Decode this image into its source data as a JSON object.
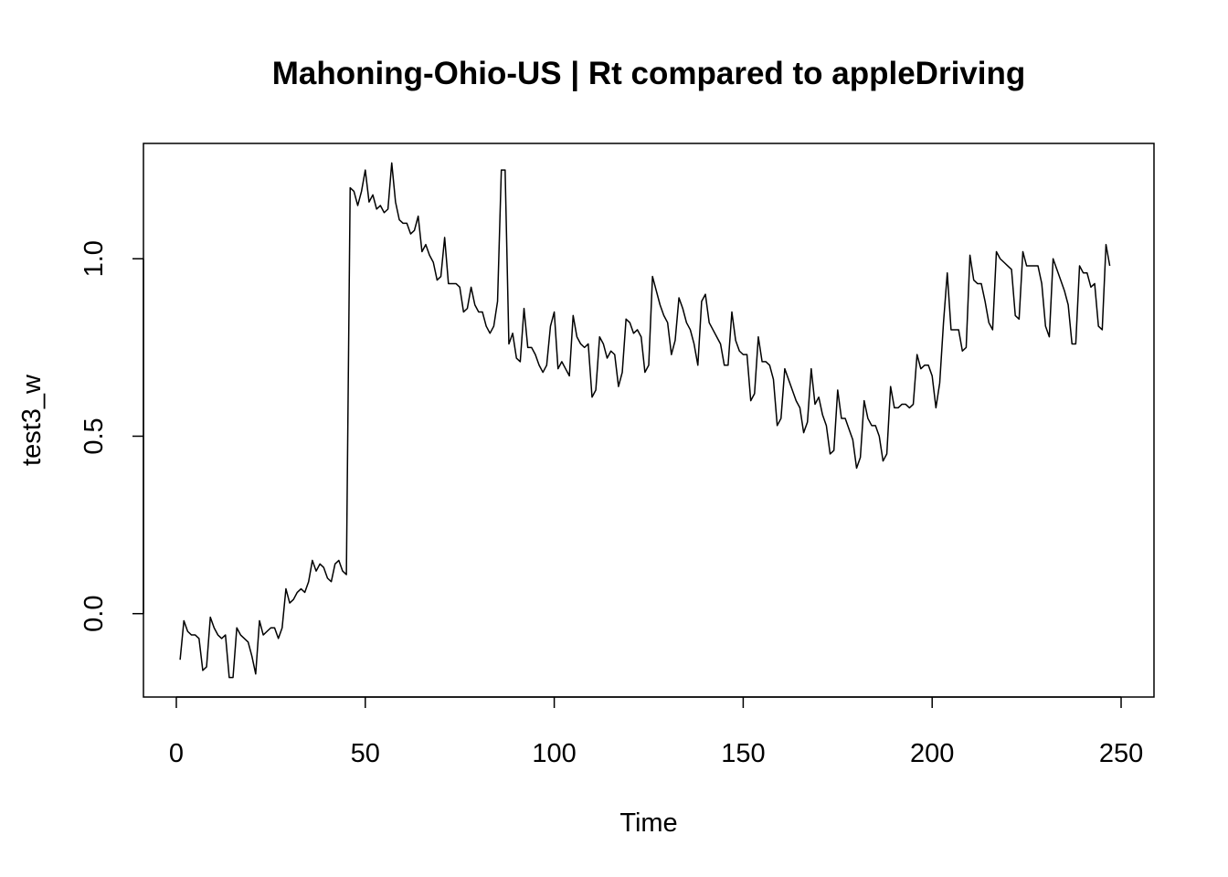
{
  "chart_data": {
    "type": "line",
    "title": "Mahoning-Ohio-US | Rt compared to appleDriving",
    "xlabel": "Time",
    "ylabel": "test3_w",
    "xlim": [
      -8.7,
      258.7
    ],
    "ylim": [
      -0.235,
      1.325
    ],
    "x_ticks": [
      0,
      50,
      100,
      150,
      200,
      250
    ],
    "x_tick_labels": [
      "0",
      "50",
      "100",
      "150",
      "200",
      "250"
    ],
    "y_ticks": [
      0.0,
      0.5,
      1.0
    ],
    "y_tick_labels": [
      "0.0",
      "0.5",
      "1.0"
    ],
    "grid": false,
    "legend": "none",
    "line_color": "#000000",
    "series": [
      {
        "x_start": 1,
        "values": [
          -0.13,
          -0.02,
          -0.05,
          -0.06,
          -0.06,
          -0.07,
          -0.16,
          -0.15,
          -0.01,
          -0.04,
          -0.06,
          -0.07,
          -0.06,
          -0.18,
          -0.18,
          -0.04,
          -0.06,
          -0.07,
          -0.08,
          -0.12,
          -0.17,
          -0.02,
          -0.06,
          -0.05,
          -0.04,
          -0.04,
          -0.07,
          -0.04,
          0.07,
          0.03,
          0.04,
          0.06,
          0.07,
          0.06,
          0.09,
          0.15,
          0.12,
          0.14,
          0.13,
          0.1,
          0.09,
          0.14,
          0.15,
          0.12,
          0.11,
          1.2,
          1.19,
          1.15,
          1.19,
          1.25,
          1.16,
          1.18,
          1.14,
          1.15,
          1.13,
          1.14,
          1.27,
          1.16,
          1.11,
          1.1,
          1.1,
          1.07,
          1.08,
          1.12,
          1.02,
          1.04,
          1.01,
          0.99,
          0.94,
          0.95,
          1.06,
          0.93,
          0.93,
          0.93,
          0.92,
          0.85,
          0.86,
          0.92,
          0.87,
          0.85,
          0.85,
          0.81,
          0.79,
          0.81,
          0.88,
          1.25,
          1.25,
          0.76,
          0.79,
          0.72,
          0.71,
          0.86,
          0.75,
          0.75,
          0.73,
          0.7,
          0.68,
          0.7,
          0.81,
          0.85,
          0.69,
          0.71,
          0.69,
          0.67,
          0.84,
          0.78,
          0.76,
          0.75,
          0.76,
          0.61,
          0.63,
          0.78,
          0.76,
          0.72,
          0.74,
          0.73,
          0.64,
          0.68,
          0.83,
          0.82,
          0.79,
          0.8,
          0.78,
          0.68,
          0.7,
          0.95,
          0.91,
          0.87,
          0.84,
          0.82,
          0.73,
          0.77,
          0.89,
          0.86,
          0.82,
          0.8,
          0.76,
          0.7,
          0.88,
          0.9,
          0.82,
          0.8,
          0.78,
          0.76,
          0.7,
          0.7,
          0.85,
          0.77,
          0.74,
          0.73,
          0.73,
          0.6,
          0.62,
          0.78,
          0.71,
          0.71,
          0.7,
          0.66,
          0.53,
          0.55,
          0.69,
          0.66,
          0.63,
          0.6,
          0.58,
          0.51,
          0.54,
          0.69,
          0.59,
          0.61,
          0.56,
          0.53,
          0.45,
          0.46,
          0.63,
          0.55,
          0.55,
          0.52,
          0.49,
          0.41,
          0.44,
          0.6,
          0.55,
          0.53,
          0.53,
          0.5,
          0.43,
          0.45,
          0.64,
          0.58,
          0.58,
          0.59,
          0.59,
          0.58,
          0.59,
          0.73,
          0.69,
          0.7,
          0.7,
          0.67,
          0.58,
          0.65,
          0.82,
          0.96,
          0.8,
          0.8,
          0.8,
          0.74,
          0.75,
          1.01,
          0.94,
          0.93,
          0.93,
          0.88,
          0.82,
          0.8,
          1.02,
          1.0,
          0.99,
          0.98,
          0.97,
          0.84,
          0.83,
          1.02,
          0.98,
          0.98,
          0.98,
          0.98,
          0.93,
          0.81,
          0.78,
          1.0,
          0.97,
          0.94,
          0.91,
          0.87,
          0.76,
          0.76,
          0.98,
          0.96,
          0.96,
          0.92,
          0.93,
          0.81,
          0.8,
          1.04,
          0.98
        ]
      }
    ]
  }
}
